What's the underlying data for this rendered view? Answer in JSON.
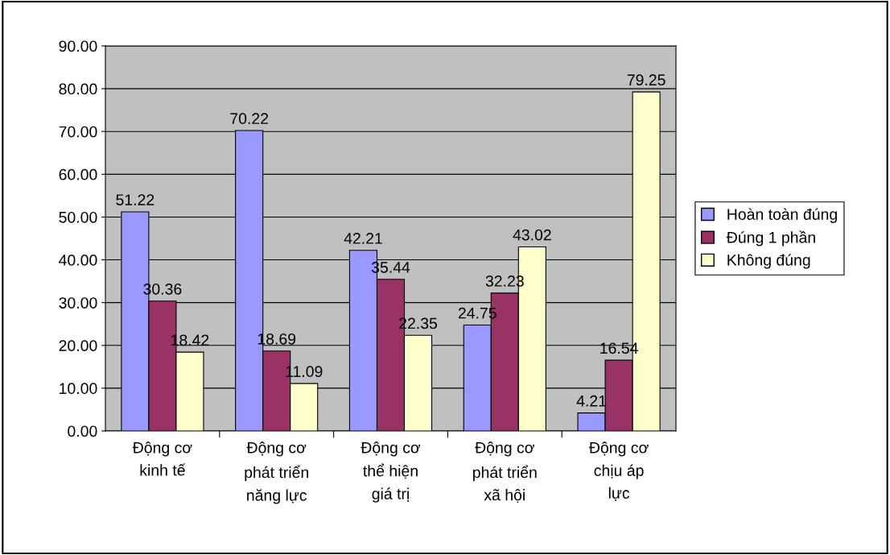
{
  "chart_data": {
    "type": "bar",
    "categories": [
      "Động cơ\nkinh tế",
      "Động cơ\nphát triển\nnăng lực",
      "Động cơ\nthể hiện\ngiá trị",
      "Động cơ\nphát triển\nxã hội",
      "Động cơ\nchịu áp\nlực"
    ],
    "series": [
      {
        "name": "Hoàn toàn đúng",
        "color": "#9999ff",
        "values": [
          51.22,
          70.22,
          42.21,
          24.75,
          4.21
        ]
      },
      {
        "name": "Đúng 1 phần",
        "color": "#993366",
        "values": [
          30.36,
          18.69,
          35.44,
          32.23,
          16.54
        ]
      },
      {
        "name": "Không đúng",
        "color": "#ffffcc",
        "values": [
          18.42,
          11.09,
          22.35,
          43.02,
          79.25
        ]
      }
    ],
    "ylim": [
      0,
      90
    ],
    "yticks": [
      {
        "value": 0,
        "label": "0.00"
      },
      {
        "value": 10,
        "label": "10.00"
      },
      {
        "value": 20,
        "label": "20.00"
      },
      {
        "value": 30,
        "label": "30.00"
      },
      {
        "value": 40,
        "label": "40.00"
      },
      {
        "value": 50,
        "label": "50.00"
      },
      {
        "value": 60,
        "label": "60.00"
      },
      {
        "value": 70,
        "label": "70.00"
      },
      {
        "value": 80,
        "label": "80.00"
      },
      {
        "value": 90,
        "label": "90.00"
      }
    ],
    "grid": "y",
    "legend": "right",
    "data_labels": true
  }
}
